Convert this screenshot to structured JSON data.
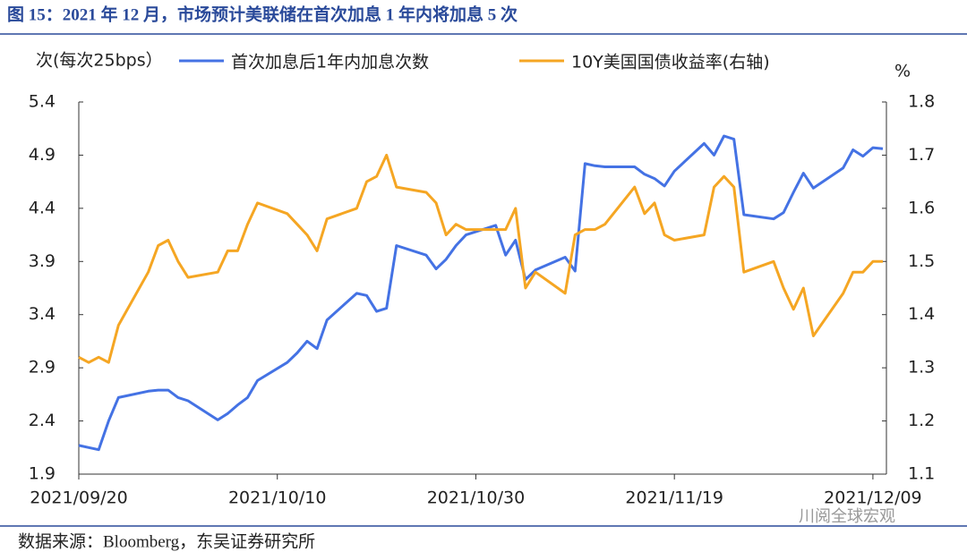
{
  "chart_data": {
    "type": "line",
    "title": "图 15：2021 年 12 月，市场预计美联储在首次加息 1 年内将加息 5 次",
    "y_label": "次(每次25bps）",
    "y2_label": "%",
    "source": "数据来源：Bloomberg，东吴证券研究所",
    "watermark": "川阅全球宏观",
    "x": [
      "2021/09/20",
      "2021/09/21",
      "2021/09/22",
      "2021/09/23",
      "2021/09/24",
      "2021/09/27",
      "2021/09/28",
      "2021/09/29",
      "2021/09/30",
      "2021/10/01",
      "2021/10/04",
      "2021/10/05",
      "2021/10/06",
      "2021/10/07",
      "2021/10/08",
      "2021/10/11",
      "2021/10/12",
      "2021/10/13",
      "2021/10/14",
      "2021/10/15",
      "2021/10/18",
      "2021/10/19",
      "2021/10/20",
      "2021/10/21",
      "2021/10/22",
      "2021/10/25",
      "2021/10/26",
      "2021/10/27",
      "2021/10/28",
      "2021/10/29",
      "2021/11/01",
      "2021/11/02",
      "2021/11/03",
      "2021/11/04",
      "2021/11/05",
      "2021/11/08",
      "2021/11/09",
      "2021/11/10",
      "2021/11/11",
      "2021/11/12",
      "2021/11/15",
      "2021/11/16",
      "2021/11/17",
      "2021/11/18",
      "2021/11/19",
      "2021/11/22",
      "2021/11/23",
      "2021/11/24",
      "2021/11/25",
      "2021/11/26",
      "2021/11/29",
      "2021/11/30",
      "2021/12/01",
      "2021/12/02",
      "2021/12/03",
      "2021/12/06",
      "2021/12/07",
      "2021/12/08",
      "2021/12/09",
      "2021/12/10"
    ],
    "series": [
      {
        "name": "首次加息后1年内加息次数",
        "color": "#4472e4",
        "axis": "y",
        "values": [
          2.17,
          2.15,
          2.13,
          2.4,
          2.62,
          2.68,
          2.69,
          2.69,
          2.62,
          2.59,
          2.41,
          2.47,
          2.55,
          2.62,
          2.78,
          2.95,
          3.04,
          3.15,
          3.08,
          3.35,
          3.6,
          3.58,
          3.43,
          3.46,
          4.05,
          3.96,
          3.83,
          3.92,
          4.05,
          4.15,
          4.24,
          3.96,
          4.1,
          3.73,
          3.82,
          3.94,
          3.81,
          4.82,
          4.8,
          4.79,
          4.79,
          4.72,
          4.68,
          4.61,
          4.75,
          5.01,
          4.9,
          5.08,
          5.05,
          4.34,
          4.3,
          4.36,
          4.55,
          4.73,
          4.59,
          4.78,
          4.95,
          4.89,
          4.97,
          4.96
        ]
      },
      {
        "name": "10Y美国国债收益率(右轴)",
        "color": "#f5a623",
        "axis": "y2",
        "values": [
          1.32,
          1.31,
          1.32,
          1.31,
          1.38,
          1.48,
          1.53,
          1.54,
          1.5,
          1.47,
          1.48,
          1.52,
          1.52,
          1.57,
          1.61,
          1.59,
          1.57,
          1.55,
          1.52,
          1.58,
          1.6,
          1.65,
          1.66,
          1.7,
          1.64,
          1.63,
          1.61,
          1.55,
          1.57,
          1.56,
          1.56,
          1.56,
          1.6,
          1.45,
          1.48,
          1.44,
          1.55,
          1.56,
          1.56,
          1.57,
          1.64,
          1.59,
          1.61,
          1.55,
          1.54,
          1.55,
          1.64,
          1.66,
          1.64,
          1.48,
          1.5,
          1.45,
          1.41,
          1.45,
          1.36,
          1.44,
          1.48,
          1.48,
          1.5,
          1.5
        ]
      }
    ],
    "xlim": [
      "2021/09/20",
      "2021/12/10"
    ],
    "xticks": [
      "2021/09/20",
      "2021/10/10",
      "2021/10/30",
      "2021/11/19",
      "2021/12/09"
    ],
    "ylim": [
      1.9,
      5.4
    ],
    "yticks": [
      1.9,
      2.4,
      2.9,
      3.4,
      3.9,
      4.4,
      4.9,
      5.4
    ],
    "y2lim": [
      1.1,
      1.8
    ],
    "y2ticks": [
      1.1,
      1.2,
      1.3,
      1.4,
      1.5,
      1.6,
      1.7,
      1.8
    ]
  }
}
